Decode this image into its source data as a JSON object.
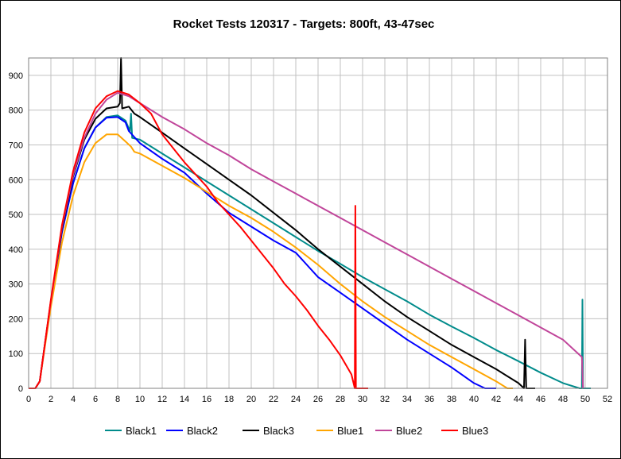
{
  "chart_data": {
    "type": "line",
    "title": "Rocket Tests 120317 - Targets: 800ft, 43-47sec",
    "xlabel": "",
    "ylabel": "",
    "xlim": [
      0,
      52
    ],
    "ylim": [
      0,
      950
    ],
    "xticks": [
      0,
      2,
      4,
      6,
      8,
      10,
      12,
      14,
      16,
      18,
      20,
      22,
      24,
      26,
      28,
      30,
      32,
      34,
      36,
      38,
      40,
      42,
      44,
      46,
      48,
      50,
      52
    ],
    "yticks": [
      0,
      100,
      200,
      300,
      400,
      500,
      600,
      700,
      800,
      900
    ],
    "grid": true,
    "legend": "bottom",
    "series": [
      {
        "name": "Black1",
        "color": "#008B8B",
        "points": [
          [
            0,
            0
          ],
          [
            0.6,
            0
          ],
          [
            1,
            20
          ],
          [
            2,
            250
          ],
          [
            3,
            450
          ],
          [
            4,
            590
          ],
          [
            5,
            690
          ],
          [
            6,
            750
          ],
          [
            7,
            780
          ],
          [
            8,
            785
          ],
          [
            8.7,
            770
          ],
          [
            9.1,
            740
          ],
          [
            9.2,
            790
          ],
          [
            9.3,
            720
          ],
          [
            10,
            715
          ],
          [
            12,
            675
          ],
          [
            14,
            635
          ],
          [
            16,
            595
          ],
          [
            18,
            555
          ],
          [
            20,
            515
          ],
          [
            22,
            475
          ],
          [
            24,
            435
          ],
          [
            26,
            395
          ],
          [
            28,
            358
          ],
          [
            30,
            320
          ],
          [
            32,
            285
          ],
          [
            34,
            250
          ],
          [
            36,
            212
          ],
          [
            38,
            178
          ],
          [
            40,
            145
          ],
          [
            42,
            110
          ],
          [
            44,
            78
          ],
          [
            46,
            45
          ],
          [
            48,
            15
          ],
          [
            49.5,
            0
          ],
          [
            49.7,
            0
          ],
          [
            49.75,
            255
          ],
          [
            49.8,
            0
          ],
          [
            50.5,
            0
          ]
        ]
      },
      {
        "name": "Black2",
        "color": "#0000FF",
        "points": [
          [
            0,
            0
          ],
          [
            0.6,
            0
          ],
          [
            1,
            20
          ],
          [
            2,
            250
          ],
          [
            3,
            450
          ],
          [
            4,
            590
          ],
          [
            5,
            690
          ],
          [
            6,
            750
          ],
          [
            7,
            778
          ],
          [
            8,
            780
          ],
          [
            8.7,
            765
          ],
          [
            9,
            740
          ],
          [
            10,
            705
          ],
          [
            12,
            660
          ],
          [
            14,
            620
          ],
          [
            16,
            560
          ],
          [
            18,
            505
          ],
          [
            20,
            465
          ],
          [
            22,
            425
          ],
          [
            24,
            390
          ],
          [
            26,
            320
          ],
          [
            28,
            275
          ],
          [
            30,
            230
          ],
          [
            32,
            185
          ],
          [
            34,
            140
          ],
          [
            36,
            100
          ],
          [
            38,
            60
          ],
          [
            40,
            15
          ],
          [
            41,
            0
          ],
          [
            42,
            0
          ]
        ]
      },
      {
        "name": "Black3",
        "color": "#000000",
        "points": [
          [
            0,
            0
          ],
          [
            0.6,
            0
          ],
          [
            1,
            20
          ],
          [
            2,
            250
          ],
          [
            3,
            460
          ],
          [
            4,
            610
          ],
          [
            5,
            715
          ],
          [
            6,
            775
          ],
          [
            7,
            805
          ],
          [
            8,
            810
          ],
          [
            8.2,
            820
          ],
          [
            8.3,
            950
          ],
          [
            8.4,
            805
          ],
          [
            9,
            810
          ],
          [
            9.5,
            790
          ],
          [
            10,
            780
          ],
          [
            12,
            735
          ],
          [
            14,
            690
          ],
          [
            16,
            645
          ],
          [
            18,
            600
          ],
          [
            20,
            555
          ],
          [
            22,
            505
          ],
          [
            24,
            455
          ],
          [
            26,
            400
          ],
          [
            28,
            350
          ],
          [
            30,
            300
          ],
          [
            32,
            250
          ],
          [
            34,
            205
          ],
          [
            36,
            165
          ],
          [
            38,
            125
          ],
          [
            40,
            90
          ],
          [
            42,
            55
          ],
          [
            44,
            15
          ],
          [
            44.5,
            0
          ],
          [
            44.6,
            140
          ],
          [
            44.7,
            0
          ],
          [
            45.5,
            0
          ]
        ]
      },
      {
        "name": "Blue1",
        "color": "#FFA500",
        "points": [
          [
            0,
            0
          ],
          [
            0.6,
            0
          ],
          [
            1,
            20
          ],
          [
            2,
            235
          ],
          [
            3,
            420
          ],
          [
            4,
            555
          ],
          [
            5,
            650
          ],
          [
            6,
            705
          ],
          [
            7,
            730
          ],
          [
            8,
            730
          ],
          [
            8.7,
            710
          ],
          [
            9.2,
            695
          ],
          [
            9.5,
            680
          ],
          [
            10,
            675
          ],
          [
            12,
            640
          ],
          [
            14,
            605
          ],
          [
            16,
            565
          ],
          [
            18,
            525
          ],
          [
            20,
            490
          ],
          [
            22,
            450
          ],
          [
            24,
            405
          ],
          [
            26,
            355
          ],
          [
            28,
            300
          ],
          [
            30,
            250
          ],
          [
            32,
            205
          ],
          [
            34,
            165
          ],
          [
            36,
            125
          ],
          [
            38,
            90
          ],
          [
            40,
            55
          ],
          [
            42,
            20
          ],
          [
            43,
            0
          ],
          [
            43.5,
            0
          ]
        ]
      },
      {
        "name": "Blue2",
        "color": "#C0459A",
        "points": [
          [
            0,
            0
          ],
          [
            0.6,
            0
          ],
          [
            1,
            20
          ],
          [
            2,
            250
          ],
          [
            3,
            465
          ],
          [
            4,
            615
          ],
          [
            5,
            720
          ],
          [
            6,
            790
          ],
          [
            7,
            830
          ],
          [
            8,
            850
          ],
          [
            9,
            840
          ],
          [
            10,
            820
          ],
          [
            12,
            780
          ],
          [
            14,
            745
          ],
          [
            16,
            705
          ],
          [
            18,
            670
          ],
          [
            20,
            630
          ],
          [
            22,
            595
          ],
          [
            24,
            560
          ],
          [
            26,
            525
          ],
          [
            28,
            490
          ],
          [
            30,
            455
          ],
          [
            32,
            420
          ],
          [
            34,
            385
          ],
          [
            36,
            350
          ],
          [
            38,
            315
          ],
          [
            40,
            280
          ],
          [
            42,
            245
          ],
          [
            44,
            210
          ],
          [
            46,
            175
          ],
          [
            48,
            140
          ],
          [
            49.7,
            90
          ],
          [
            49.8,
            0
          ]
        ]
      },
      {
        "name": "Blue3",
        "color": "#FF0000",
        "points": [
          [
            0,
            0
          ],
          [
            0.6,
            0
          ],
          [
            1,
            20
          ],
          [
            2,
            255
          ],
          [
            3,
            470
          ],
          [
            4,
            625
          ],
          [
            5,
            735
          ],
          [
            6,
            805
          ],
          [
            7,
            840
          ],
          [
            8,
            855
          ],
          [
            9,
            845
          ],
          [
            10,
            820
          ],
          [
            11,
            790
          ],
          [
            12,
            730
          ],
          [
            13,
            690
          ],
          [
            14,
            650
          ],
          [
            15,
            615
          ],
          [
            16,
            580
          ],
          [
            17,
            535
          ],
          [
            18,
            500
          ],
          [
            19,
            465
          ],
          [
            20,
            425
          ],
          [
            21,
            385
          ],
          [
            22,
            345
          ],
          [
            23,
            300
          ],
          [
            24,
            265
          ],
          [
            25,
            225
          ],
          [
            26,
            180
          ],
          [
            27,
            140
          ],
          [
            28,
            95
          ],
          [
            29,
            40
          ],
          [
            29.3,
            0
          ],
          [
            29.35,
            525
          ],
          [
            29.4,
            0
          ],
          [
            30.5,
            0
          ]
        ]
      }
    ]
  }
}
